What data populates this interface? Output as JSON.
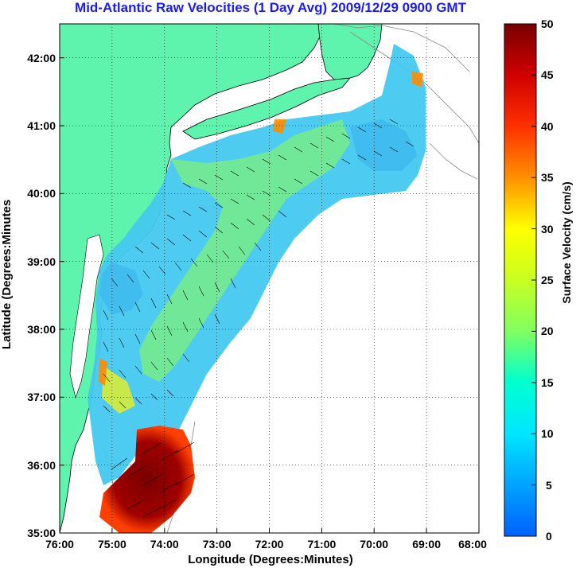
{
  "title": "Mid-Atlantic Raw Velocities (1 Day Avg) 2009/12/29 0900 GMT",
  "map": {
    "xlabel": "Longitude (Degrees:Minutes)",
    "ylabel": "Latitude (Degrees:Minutes",
    "x_ticks": [
      "76:00",
      "75:00",
      "74:00",
      "73:00",
      "72:00",
      "71:00",
      "70:00",
      "69:00",
      "68:00"
    ],
    "y_ticks": [
      "42:00",
      "41:00",
      "40:00",
      "39:00",
      "38:00",
      "37:00",
      "36:00",
      "35:00"
    ],
    "x_range_deg_w": [
      76,
      68
    ],
    "y_range_deg_n": [
      35,
      42.5
    ],
    "land_color": "#5ef4ad",
    "grid": "dotted"
  },
  "colorbar": {
    "label": "Surface Velocity (cm/s)",
    "ticks": [
      "50",
      "45",
      "40",
      "35",
      "30",
      "25",
      "20",
      "15",
      "10",
      "5",
      "0"
    ],
    "range": [
      0,
      50
    ]
  }
}
